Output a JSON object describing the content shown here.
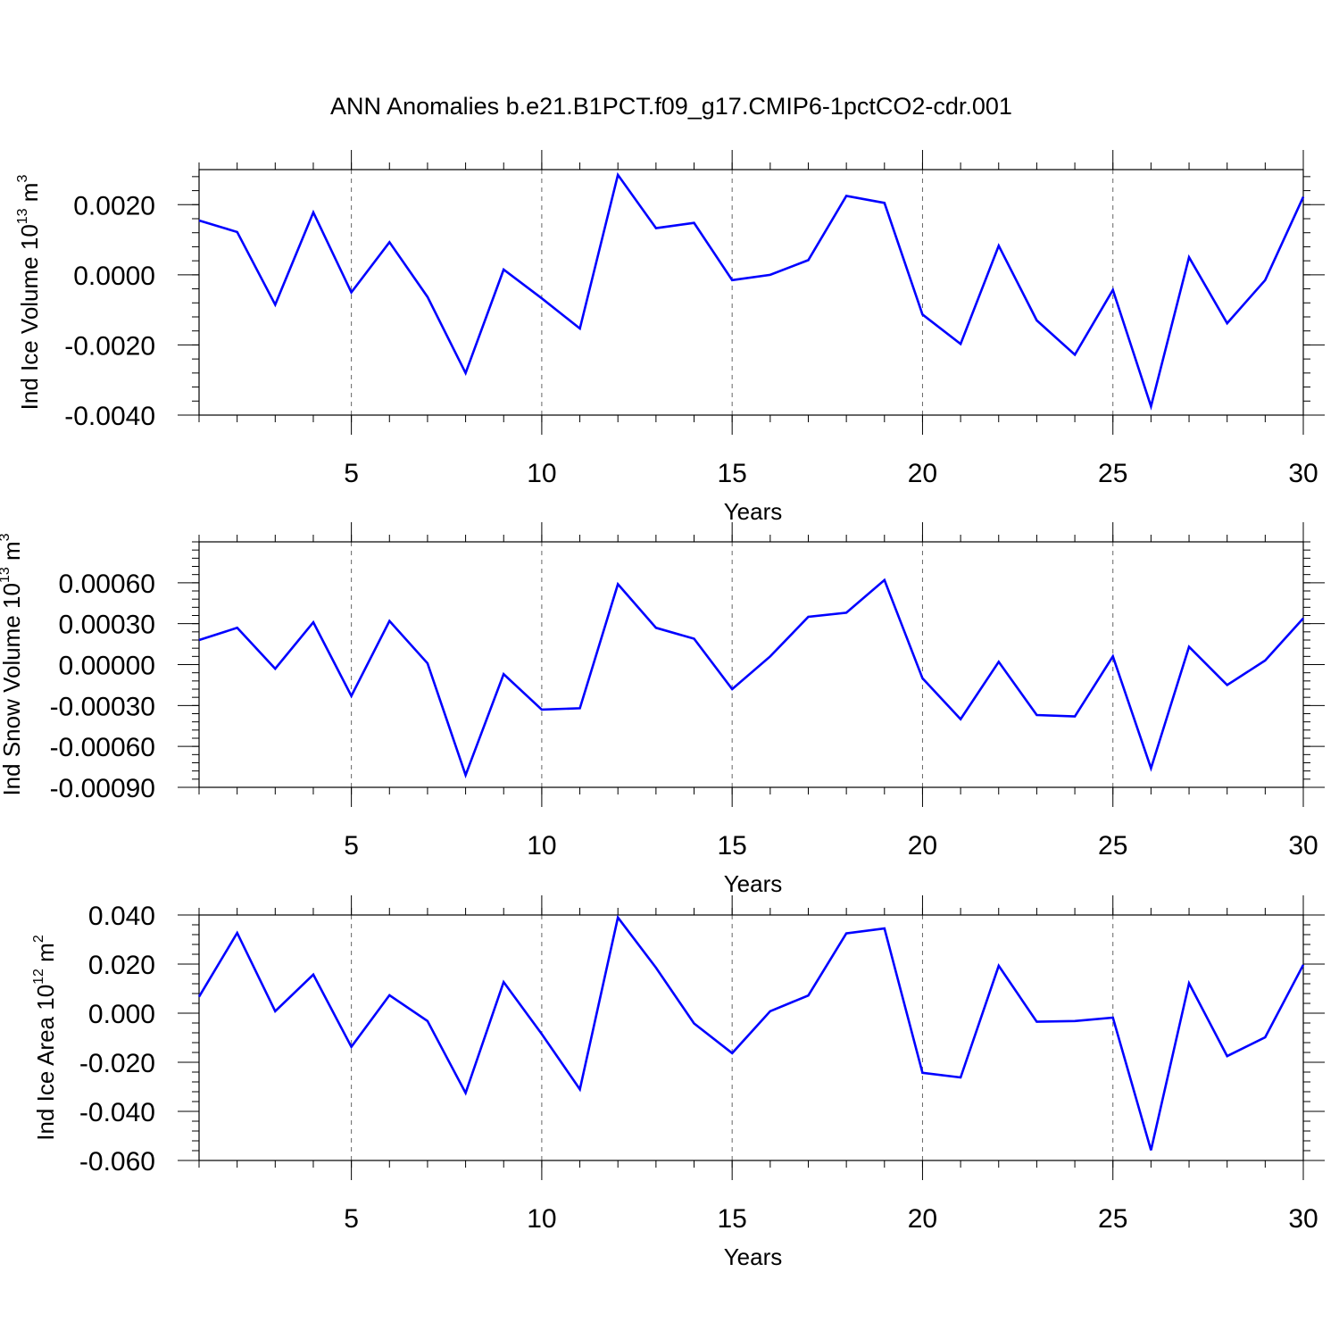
{
  "chart_data": {
    "title": "ANN Anomalies b.e21.B1PCT.f09_g17.CMIP6-1pctCO2-cdr.001",
    "line_color": "#0000ff",
    "grid": "dashed vertical lines at major x ticks",
    "panels": [
      {
        "type": "line",
        "ylabel": {
          "main": "Ind Ice Volume 10",
          "exp": "13",
          "unit": " m",
          "unit_exp": "3"
        },
        "xlabel": "Years",
        "xlim": [
          1,
          30
        ],
        "ylim": [
          -0.004,
          0.003
        ],
        "x_ticks": [
          "5",
          "10",
          "15",
          "20",
          "25",
          "30"
        ],
        "y_ticks": [
          {
            "v": 0.002,
            "label": "0.0020"
          },
          {
            "v": 0.0,
            "label": "0.0000"
          },
          {
            "v": -0.002,
            "label": "-0.0020"
          },
          {
            "v": -0.004,
            "label": "-0.0040"
          }
        ],
        "x": [
          1,
          2,
          3,
          4,
          5,
          6,
          7,
          8,
          9,
          10,
          11,
          12,
          13,
          14,
          15,
          16,
          17,
          18,
          19,
          20,
          21,
          22,
          23,
          24,
          25,
          26,
          27,
          28,
          29,
          30
        ],
        "y": [
          0.00155,
          0.00122,
          -0.00085,
          0.00178,
          -0.0005,
          0.00093,
          -0.00063,
          -0.0028,
          0.00015,
          -0.00067,
          -0.00153,
          0.00285,
          0.00133,
          0.00148,
          -0.00015,
          0.0,
          0.00042,
          0.00225,
          0.00205,
          -0.00113,
          -0.00197,
          0.00083,
          -0.0013,
          -0.00228,
          -0.00043,
          -0.00375,
          0.0005,
          -0.00138,
          -0.00015,
          0.00222
        ]
      },
      {
        "type": "line",
        "ylabel": {
          "main": "Ind Snow Volume 10",
          "exp": "13",
          "unit": " m",
          "unit_exp": "3"
        },
        "xlabel": "Years",
        "xlim": [
          1,
          30
        ],
        "ylim": [
          -0.0009,
          0.0009
        ],
        "x_ticks": [
          "5",
          "10",
          "15",
          "20",
          "25",
          "30"
        ],
        "y_ticks": [
          {
            "v": 0.0006,
            "label": "0.00060"
          },
          {
            "v": 0.0003,
            "label": "0.00030"
          },
          {
            "v": 0.0,
            "label": "0.00000"
          },
          {
            "v": -0.0003,
            "label": "-0.00030"
          },
          {
            "v": -0.0006,
            "label": "-0.00060"
          },
          {
            "v": -0.0009,
            "label": "-0.00090"
          }
        ],
        "x": [
          1,
          2,
          3,
          4,
          5,
          6,
          7,
          8,
          9,
          10,
          11,
          12,
          13,
          14,
          15,
          16,
          17,
          18,
          19,
          20,
          21,
          22,
          23,
          24,
          25,
          26,
          27,
          28,
          29,
          30
        ],
        "y": [
          0.00018,
          0.00027,
          -3e-05,
          0.00031,
          -0.00023,
          0.00032,
          1e-05,
          -0.00081,
          -7e-05,
          -0.00033,
          -0.00032,
          0.00059,
          0.00027,
          0.00019,
          -0.00018,
          6e-05,
          0.00035,
          0.00038,
          0.00062,
          -0.0001,
          -0.0004,
          2e-05,
          -0.00037,
          -0.00038,
          6e-05,
          -0.00076,
          0.00013,
          -0.00015,
          3e-05,
          0.00034
        ]
      },
      {
        "type": "line",
        "ylabel": {
          "main": "Ind Ice Area 10",
          "exp": "12",
          "unit": " m",
          "unit_exp": "2"
        },
        "xlabel": "Years",
        "xlim": [
          1,
          30
        ],
        "ylim": [
          -0.06,
          0.04
        ],
        "x_ticks": [
          "5",
          "10",
          "15",
          "20",
          "25",
          "30"
        ],
        "y_ticks": [
          {
            "v": 0.04,
            "label": "0.040"
          },
          {
            "v": 0.02,
            "label": "0.020"
          },
          {
            "v": 0.0,
            "label": "0.000"
          },
          {
            "v": -0.02,
            "label": "-0.020"
          },
          {
            "v": -0.04,
            "label": "-0.040"
          },
          {
            "v": -0.06,
            "label": "-0.060"
          }
        ],
        "x": [
          1,
          2,
          3,
          4,
          5,
          6,
          7,
          8,
          9,
          10,
          11,
          12,
          13,
          14,
          15,
          16,
          17,
          18,
          19,
          20,
          21,
          22,
          23,
          24,
          25,
          26,
          27,
          28,
          29,
          30
        ],
        "y": [
          0.0067,
          0.0327,
          0.0008,
          0.0157,
          -0.0137,
          0.0073,
          -0.0032,
          -0.0325,
          0.0127,
          -0.0085,
          -0.031,
          0.039,
          0.0185,
          -0.0042,
          -0.0163,
          0.0008,
          0.0072,
          0.0325,
          0.0345,
          -0.0243,
          -0.0262,
          0.0193,
          -0.0035,
          -0.0032,
          -0.0018,
          -0.0558,
          0.0122,
          -0.0175,
          -0.0098,
          0.0197
        ]
      }
    ]
  }
}
